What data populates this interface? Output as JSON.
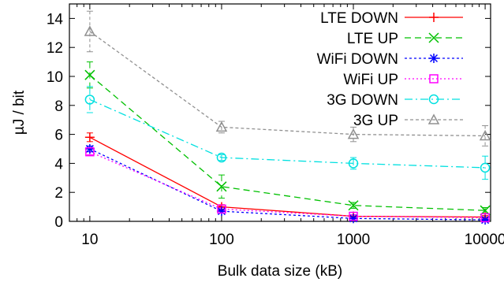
{
  "chart_data": {
    "type": "line",
    "xscale": "log",
    "x": [
      10,
      100,
      1000,
      10000
    ],
    "x_tick_labels": [
      "10",
      "100",
      "1000",
      "10000"
    ],
    "y_tick_labels": [
      "0",
      "2",
      "4",
      "6",
      "8",
      "10",
      "12",
      "14"
    ],
    "xlim": [
      7,
      11000
    ],
    "ylim": [
      0,
      15
    ],
    "xlabel": "Bulk data size (kB)",
    "ylabel": "µJ / bit",
    "legend_position": "top-right",
    "error_bars": true,
    "series": [
      {
        "name": "LTE DOWN",
        "color": "#ff0000",
        "dash": "",
        "marker": "plus",
        "values": [
          5.8,
          1.0,
          0.35,
          0.3
        ],
        "errors": [
          0.3,
          0.15,
          0.1,
          0.1
        ]
      },
      {
        "name": "LTE UP",
        "color": "#00c000",
        "dash": "8,5",
        "marker": "x",
        "values": [
          10.1,
          2.4,
          1.1,
          0.75
        ],
        "errors": [
          0.9,
          0.8,
          0.2,
          0.2
        ]
      },
      {
        "name": "WiFi DOWN",
        "color": "#0000ff",
        "dash": "3,3",
        "marker": "asterisk",
        "values": [
          5.0,
          0.7,
          0.2,
          0.1
        ],
        "errors": [
          0.2,
          0.1,
          0.1,
          0.05
        ]
      },
      {
        "name": "WiFi UP",
        "color": "#ff00ff",
        "dash": "2,3",
        "marker": "square",
        "values": [
          4.8,
          0.85,
          0.35,
          0.25
        ],
        "errors": [
          0.2,
          0.1,
          0.1,
          0.05
        ]
      },
      {
        "name": "3G DOWN",
        "color": "#00e0e0",
        "dash": "10,4,2,4",
        "marker": "circle",
        "values": [
          8.4,
          4.4,
          4.0,
          3.7
        ],
        "errors": [
          0.9,
          0.2,
          0.4,
          0.8
        ]
      },
      {
        "name": "3G UP",
        "color": "#909090",
        "dash": "4,3",
        "marker": "triangle",
        "values": [
          13.1,
          6.5,
          6.0,
          5.9
        ],
        "errors": [
          1.4,
          0.4,
          0.5,
          0.7
        ]
      }
    ]
  }
}
